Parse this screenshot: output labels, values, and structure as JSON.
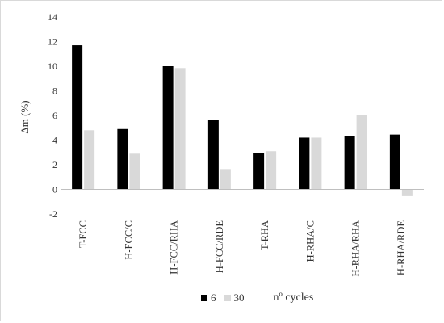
{
  "chart_data": {
    "type": "bar",
    "categories": [
      "T-FCC",
      "H-FCC/C",
      "H-FCC/RHA",
      "H-FCC/RDE",
      "T-RHA",
      "H-RHA/C",
      "H-RHA/RHA",
      "H-RHA/RDE"
    ],
    "series": [
      {
        "name": "6",
        "values": [
          11.7,
          4.9,
          10.0,
          5.65,
          2.95,
          4.2,
          4.35,
          4.45
        ],
        "color": "#000000"
      },
      {
        "name": "30",
        "values": [
          4.8,
          2.9,
          9.85,
          1.65,
          3.1,
          4.2,
          6.05,
          -0.55
        ],
        "color": "#d9d9d9"
      }
    ],
    "ylabel": "Δm (%)",
    "ylim": [
      -2,
      14
    ],
    "yticks": [
      -2,
      0,
      2,
      4,
      6,
      8,
      10,
      12,
      14
    ],
    "grid": false,
    "legend_title": "nº cycles",
    "legend_position": "bottom"
  }
}
